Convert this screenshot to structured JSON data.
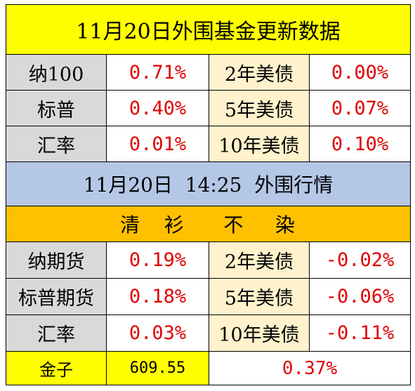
{
  "section1": {
    "title": "11月20日外围基金更新数据",
    "rows": [
      {
        "label": "纳100",
        "value": "0.71%",
        "bond": "2年美债",
        "bond_value": "0.00%"
      },
      {
        "label": "标普",
        "value": "0.40%",
        "bond": "5年美债",
        "bond_value": "0.07%"
      },
      {
        "label": "汇率",
        "value": "0.01%",
        "bond": "10年美债",
        "bond_value": "0.10%"
      }
    ]
  },
  "section2": {
    "title": "11月20日  14:25  外围行情",
    "slogan": "清   衫     不    染",
    "rows": [
      {
        "label": "纳期货",
        "value": "0.19%",
        "bond": "2年美债",
        "bond_value": "-0.02%"
      },
      {
        "label": "标普期货",
        "value": "0.18%",
        "bond": "5年美债",
        "bond_value": "-0.06%"
      },
      {
        "label": "汇率",
        "value": "0.03%",
        "bond": "10年美债",
        "bond_value": "-0.11%"
      }
    ]
  },
  "gold": {
    "label": "金子",
    "price": "609.55",
    "change": "0.37%"
  },
  "colors": {
    "title_bg": "#ffff00",
    "subtitle_bg": "#b4c7e7",
    "slogan_bg": "#ffc000",
    "label_bg": "#d9d9d9",
    "bond_label_bg": "#fff2cc",
    "value_text": "#e00000"
  }
}
